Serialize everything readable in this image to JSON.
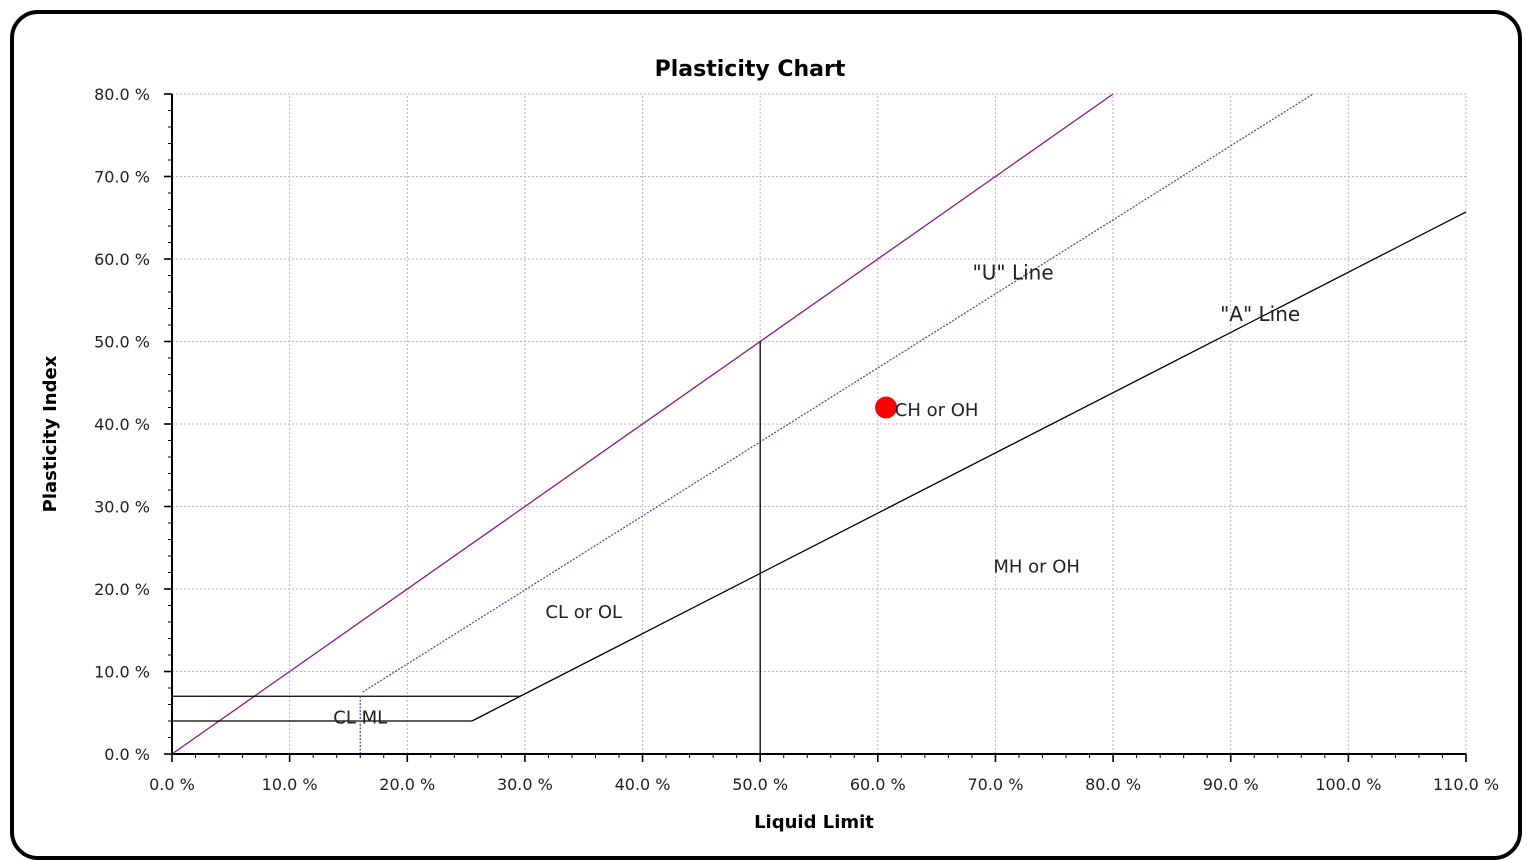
{
  "chart_data": {
    "type": "scatter",
    "title": "Plasticity Chart",
    "xlabel": "Liquid Limit",
    "ylabel": "Plasticity Index",
    "xlim": [
      0,
      110
    ],
    "ylim": [
      0,
      80
    ],
    "grid": true,
    "x_ticks": [
      "0.0 %",
      "10.0 %",
      "20.0 %",
      "30.0 %",
      "40.0 %",
      "50.0 %",
      "60.0 %",
      "70.0 %",
      "80.0 %",
      "90.0 %",
      "100.0 %",
      "110.0 %"
    ],
    "y_ticks": [
      "0.0 %",
      "10.0 %",
      "20.0 %",
      "30.0 %",
      "40.0 %",
      "50.0 %",
      "60.0 %",
      "70.0 %",
      "80.0 %"
    ],
    "x_tick_values": [
      0,
      10,
      20,
      30,
      40,
      50,
      60,
      70,
      80,
      90,
      100,
      110
    ],
    "y_tick_values": [
      0,
      10,
      20,
      30,
      40,
      50,
      60,
      70,
      80
    ],
    "lines": [
      {
        "id": "boundary",
        "color": "#8b1a8b",
        "style": "solid",
        "points": [
          [
            0,
            0
          ],
          [
            80,
            80
          ]
        ]
      },
      {
        "id": "u-line",
        "label": "\"U\" Line",
        "color": "#2b4f9e",
        "style": "dotted",
        "points": [
          [
            16.2,
            7.5
          ],
          [
            97,
            80
          ]
        ]
      },
      {
        "id": "a-line",
        "label": "\"A\" Line",
        "color": "#000000",
        "style": "solid",
        "points": [
          [
            25.5,
            4
          ],
          [
            29.6,
            7
          ],
          [
            110,
            65.7
          ]
        ]
      },
      {
        "id": "pi7-line",
        "color": "#000000",
        "style": "solid",
        "points": [
          [
            0,
            7
          ],
          [
            29.6,
            7
          ]
        ]
      },
      {
        "id": "pi4-line",
        "color": "#000000",
        "style": "solid",
        "points": [
          [
            0,
            4
          ],
          [
            25.5,
            4
          ]
        ]
      },
      {
        "id": "ll16-line",
        "color": "#2b4f9e",
        "style": "dotted",
        "points": [
          [
            16,
            0
          ],
          [
            16,
            7
          ]
        ]
      },
      {
        "id": "ll50-line",
        "color": "#000000",
        "style": "solid",
        "points": [
          [
            50,
            0
          ],
          [
            50,
            50
          ]
        ]
      }
    ],
    "points": [
      {
        "x": 60.7,
        "y": 42,
        "color": "#ff0000"
      }
    ],
    "regions": [
      {
        "label": "CH or OH",
        "x": 65,
        "y": 41
      },
      {
        "label": "MH or OH",
        "x": 73.5,
        "y": 22
      },
      {
        "label": "CL or OL",
        "x": 35,
        "y": 16.5
      },
      {
        "label": "CL ML",
        "x": 16,
        "y": 3.7
      }
    ],
    "line_labels": [
      {
        "label": "\"U\" Line",
        "x": 71.5,
        "y": 57.5
      },
      {
        "label": "\"A\" Line",
        "x": 92.5,
        "y": 52.5
      }
    ]
  }
}
